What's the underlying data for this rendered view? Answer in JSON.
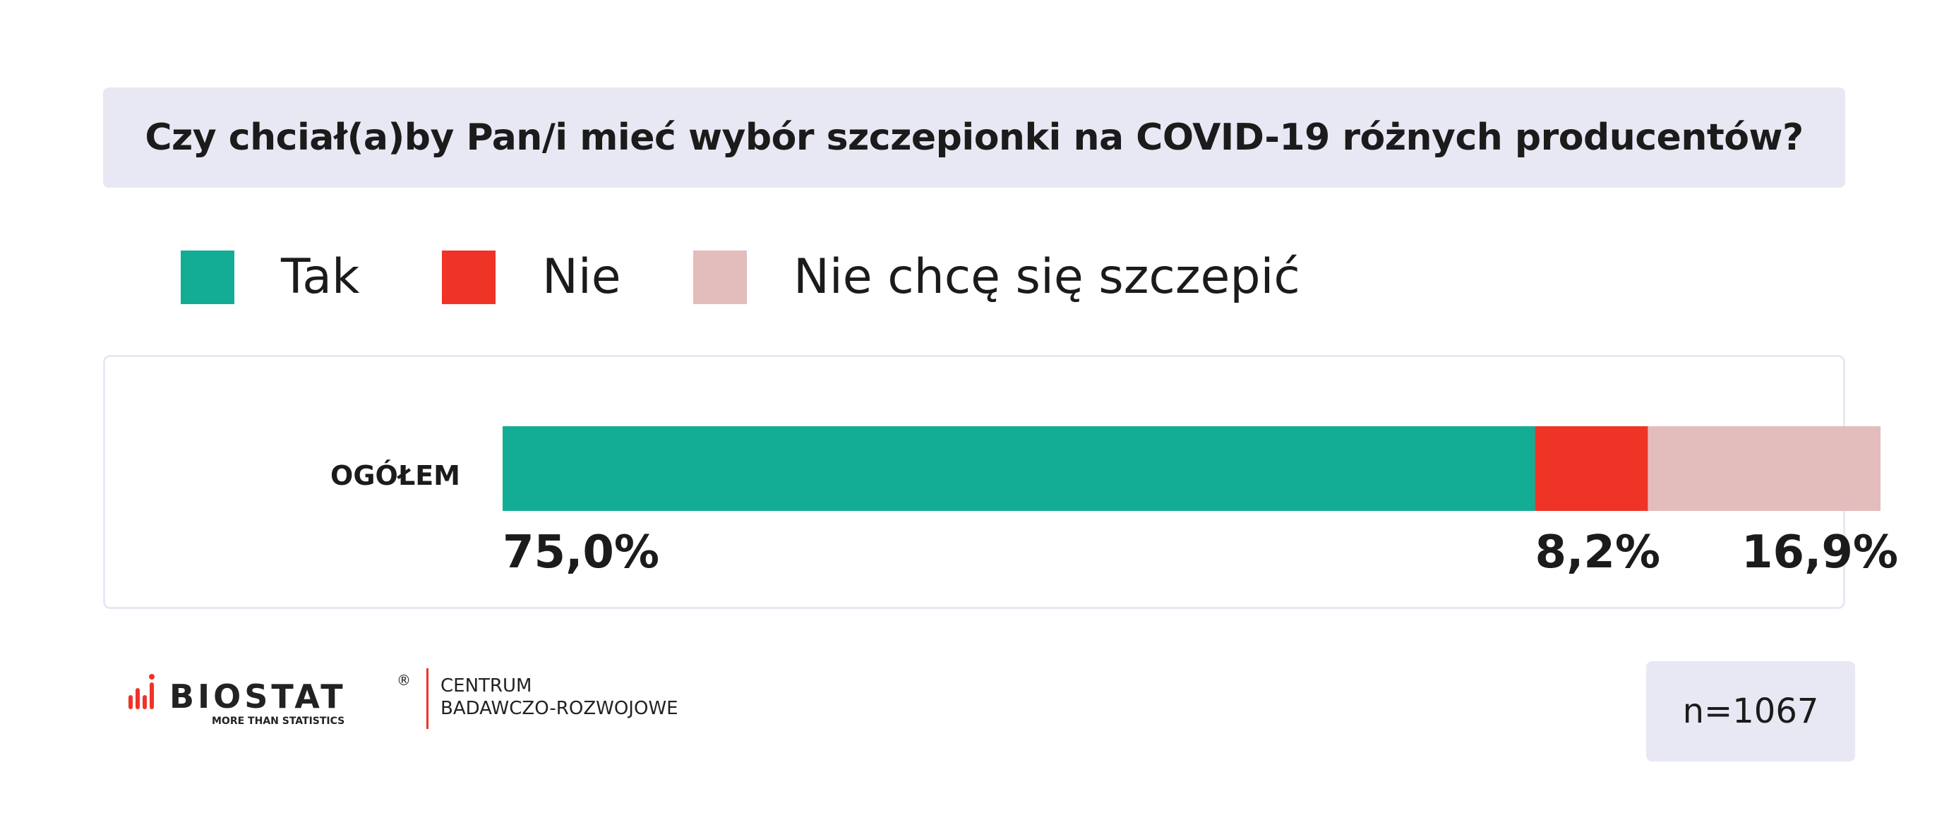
{
  "title": "Czy chciał(a)by Pan/i mieć wybór szczepionki na COVID-19 różnych producentów?",
  "legend": [
    {
      "label": "Tak",
      "color": "#13ad95"
    },
    {
      "label": "Nie",
      "color": "#ef3427"
    },
    {
      "label": "Nie chcę się szczepić",
      "color": "#e3bcbc"
    }
  ],
  "chart_data": {
    "type": "bar",
    "orientation": "horizontal",
    "stacked": true,
    "categories": [
      "OGÓŁEM"
    ],
    "series": [
      {
        "name": "Tak",
        "values": [
          75.0
        ],
        "color": "#13ad95",
        "label": "75,0%"
      },
      {
        "name": "Nie",
        "values": [
          8.2
        ],
        "color": "#ef3427",
        "label": "8,2%"
      },
      {
        "name": "Nie chcę się szczepić",
        "values": [
          16.9
        ],
        "color": "#e3bcbc",
        "label": "16,9%"
      }
    ],
    "xlim": [
      0,
      100.1
    ],
    "legend_position": "top"
  },
  "logo": {
    "brand": "BIOSTAT",
    "registered": "®",
    "tagline": "MORE THAN STATISTICS",
    "division_line1": "CENTRUM",
    "division_line2": "BADAWCZO-ROZWOJOWE"
  },
  "sample_size": "n=1067"
}
